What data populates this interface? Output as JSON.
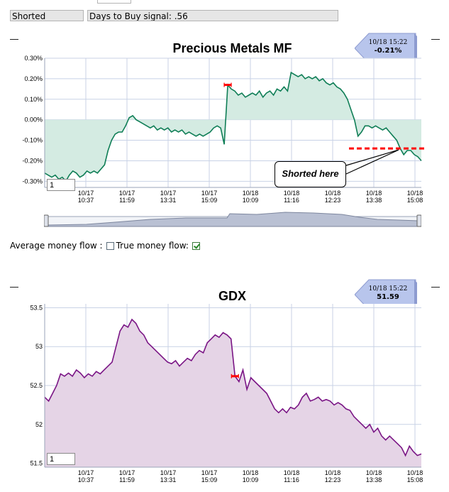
{
  "status": {
    "position": "Shorted",
    "signal": "Days to Buy signal: .56"
  },
  "colors": {
    "mf_line": "#0f7e56",
    "mf_fill": "#d4ebe2",
    "gdx_line": "#7a1585",
    "gdx_fill": "#e5d4e6",
    "grid": "#c8d2e6",
    "marker": "#ff0000",
    "callout_fill": "#b8c5ec"
  },
  "money_flow": {
    "average_label": "Average money flow :",
    "true_label": "True money flow:",
    "average_checked": false,
    "true_checked": true
  },
  "chart_data": [
    {
      "type": "area",
      "title": "Precious Metals MF",
      "units": "%",
      "ylim": [
        -0.33,
        0.3
      ],
      "yticks": [
        0.3,
        0.2,
        0.1,
        0.0,
        -0.1,
        -0.2,
        -0.3
      ],
      "ytick_labels": [
        "0.30%",
        "0.20%",
        "0.10%",
        "0.00%",
        "-0.10%",
        "-0.20%",
        "-0.30%"
      ],
      "xtick_labels": [
        [
          "10/17",
          "10:37"
        ],
        [
          "10/17",
          "11:59"
        ],
        [
          "10/17",
          "13:31"
        ],
        [
          "10/17",
          "15:09"
        ],
        [
          "10/18",
          "10:09"
        ],
        [
          "10/18",
          "11:16"
        ],
        [
          "10/18",
          "12:23"
        ],
        [
          "10/18",
          "13:38"
        ],
        [
          "10/18",
          "15:08"
        ]
      ],
      "grid": true,
      "zoom": "1",
      "callout": {
        "time": "10/18 15:22",
        "value": "-0.21%"
      },
      "annotation": "Shorted here",
      "short_level": -0.14,
      "series": [
        {
          "values": [
            -0.26,
            -0.27,
            -0.28,
            -0.27,
            -0.29,
            -0.28,
            -0.3,
            -0.27,
            -0.25,
            -0.26,
            -0.28,
            -0.27,
            -0.25,
            -0.26,
            -0.25,
            -0.26,
            -0.24,
            -0.22,
            -0.15,
            -0.1,
            -0.07,
            -0.06,
            -0.06,
            -0.03,
            0.01,
            0.02,
            0.0,
            -0.01,
            -0.02,
            -0.03,
            -0.04,
            -0.03,
            -0.05,
            -0.04,
            -0.05,
            -0.04,
            -0.06,
            -0.05,
            -0.06,
            -0.05,
            -0.07,
            -0.06,
            -0.07,
            -0.08,
            -0.07,
            -0.08,
            -0.07,
            -0.06,
            -0.04,
            -0.03,
            -0.04,
            -0.12,
            0.17,
            0.15,
            0.14,
            0.12,
            0.13,
            0.11,
            0.12,
            0.13,
            0.12,
            0.14,
            0.11,
            0.13,
            0.14,
            0.12,
            0.15,
            0.14,
            0.16,
            0.14,
            0.23,
            0.22,
            0.21,
            0.22,
            0.2,
            0.21,
            0.2,
            0.21,
            0.19,
            0.2,
            0.18,
            0.17,
            0.18,
            0.16,
            0.15,
            0.13,
            0.1,
            0.05,
            0.0,
            -0.08,
            -0.06,
            -0.03,
            -0.03,
            -0.04,
            -0.03,
            -0.04,
            -0.05,
            -0.04,
            -0.06,
            -0.08,
            -0.1,
            -0.14,
            -0.17,
            -0.15,
            -0.15,
            -0.17,
            -0.18,
            -0.2
          ]
        }
      ]
    },
    {
      "type": "area",
      "title": "GDX",
      "ylim": [
        51.45,
        53.55
      ],
      "yticks": [
        53.5,
        53,
        52.5,
        52,
        51.5
      ],
      "ytick_labels": [
        "53.5",
        "53",
        "52.5",
        "52",
        "51.5"
      ],
      "xtick_labels": [
        [
          "10/17",
          "10:37"
        ],
        [
          "10/17",
          "11:59"
        ],
        [
          "10/17",
          "13:31"
        ],
        [
          "10/17",
          "15:09"
        ],
        [
          "10/18",
          "10:09"
        ],
        [
          "10/18",
          "11:16"
        ],
        [
          "10/18",
          "12:23"
        ],
        [
          "10/18",
          "13:38"
        ],
        [
          "10/18",
          "15:08"
        ]
      ],
      "grid": true,
      "zoom": "1",
      "callout": {
        "time": "10/18 15:22",
        "value": "51.59"
      },
      "series": [
        {
          "values": [
            52.35,
            52.3,
            52.4,
            52.5,
            52.65,
            52.62,
            52.66,
            52.62,
            52.7,
            52.66,
            52.6,
            52.65,
            52.62,
            52.68,
            52.65,
            52.7,
            52.75,
            52.8,
            53.0,
            53.2,
            53.28,
            53.25,
            53.35,
            53.3,
            53.2,
            53.15,
            53.05,
            53.0,
            52.95,
            52.9,
            52.85,
            52.8,
            52.78,
            52.82,
            52.75,
            52.8,
            52.85,
            52.82,
            52.9,
            52.95,
            52.92,
            53.05,
            53.1,
            53.15,
            53.12,
            53.18,
            53.15,
            53.1,
            52.62,
            52.55,
            52.7,
            52.45,
            52.6,
            52.55,
            52.5,
            52.45,
            52.4,
            52.3,
            52.2,
            52.15,
            52.2,
            52.15,
            52.22,
            52.2,
            52.25,
            52.35,
            52.4,
            52.3,
            52.32,
            52.35,
            52.3,
            52.32,
            52.3,
            52.25,
            52.28,
            52.25,
            52.2,
            52.18,
            52.1,
            52.05,
            52.0,
            51.95,
            52.0,
            51.9,
            51.95,
            51.85,
            51.8,
            51.85,
            51.8,
            51.75,
            51.7,
            51.6,
            51.72,
            51.65,
            51.6,
            51.62
          ]
        }
      ]
    }
  ]
}
